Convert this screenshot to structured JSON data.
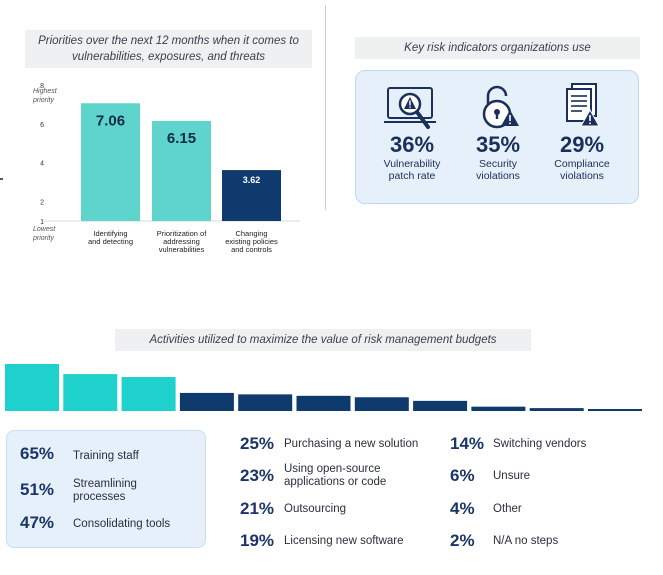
{
  "chart_data": [
    {
      "type": "bar",
      "title": "Priorities over the next 12 months when it comes to vulnerabilities, exposures, and threats",
      "categories": [
        "Identifying and detecting",
        "Prioritization of addressing vulnerabilities",
        "Changing existing policies and controls"
      ],
      "category_lines": [
        [
          "Identifying",
          "and detecting"
        ],
        [
          "Prioritization of",
          "addressing",
          "vulnerabilities"
        ],
        [
          "Changing",
          "existing policies",
          "and controls"
        ]
      ],
      "values": [
        7.06,
        6.15,
        3.62
      ],
      "value_labels": [
        "7.06",
        "6.15",
        "3.62"
      ],
      "bar_colors": [
        "#5fd4cd",
        "#5fd4cd",
        "#0f3a6e"
      ],
      "ylim": [
        1,
        8
      ],
      "yticks": [
        "1",
        "2",
        "4",
        "6",
        "8"
      ],
      "ytick_values": [
        1,
        2,
        4,
        6,
        8
      ],
      "top_annotation": [
        "Highest",
        "priority"
      ],
      "bottom_annotation": [
        "Lowest",
        "priority"
      ],
      "grid": false
    },
    {
      "type": "bar",
      "title": "Activities utilized to maximize the value of risk management budgets",
      "categories": [
        "Training staff",
        "Streamlining processes",
        "Consolidating tools",
        "Purchasing a new solution",
        "Using open-source applications or code",
        "Outsourcing",
        "Licensing new software",
        "Switching vendors",
        "Unsure",
        "Other",
        "N/A no steps"
      ],
      "values": [
        65,
        51,
        47,
        25,
        23,
        21,
        19,
        14,
        6,
        4,
        2
      ],
      "value_unit": "%",
      "bar_colors": [
        "#1fd1cc",
        "#1fd1cc",
        "#1fd1cc",
        "#0f3a6e",
        "#0f3a6e",
        "#0f3a6e",
        "#0f3a6e",
        "#0f3a6e",
        "#0f3a6e",
        "#0f3a6e",
        "#0f3a6e"
      ],
      "grid": false
    }
  ],
  "kri": {
    "title": "Key risk indicators organizations use",
    "items": [
      {
        "icon": "vulnerability-scan-icon",
        "pct": "36%",
        "label_line1": "Vulnerability",
        "label_line2": "patch rate"
      },
      {
        "icon": "padlock-warning-icon",
        "pct": "35%",
        "label_line1": "Security",
        "label_line2": "violations"
      },
      {
        "icon": "document-warning-icon",
        "pct": "29%",
        "label_line1": "Compliance",
        "label_line2": "violations"
      }
    ]
  },
  "activities": {
    "highlight": [
      {
        "pct": "65%",
        "label": "Training staff"
      },
      {
        "pct": "51%",
        "label_line1": "Streamlining",
        "label_line2": "processes"
      },
      {
        "pct": "47%",
        "label": "Consolidating tools"
      }
    ],
    "col2": [
      {
        "pct": "25%",
        "label": "Purchasing a new solution"
      },
      {
        "pct": "23%",
        "label_line1": "Using open-source",
        "label_line2": "applications or code"
      },
      {
        "pct": "21%",
        "label": "Outsourcing"
      },
      {
        "pct": "19%",
        "label": "Licensing new software"
      }
    ],
    "col3": [
      {
        "pct": "14%",
        "label": "Switching vendors"
      },
      {
        "pct": "6%",
        "label": "Unsure"
      },
      {
        "pct": "4%",
        "label": "Other"
      },
      {
        "pct": "2%",
        "label": "N/A no steps"
      }
    ]
  },
  "colors": {
    "teal": "#5fd4cd",
    "navy": "#0f3a6e",
    "light_blue_panel": "#e6f0fa"
  }
}
